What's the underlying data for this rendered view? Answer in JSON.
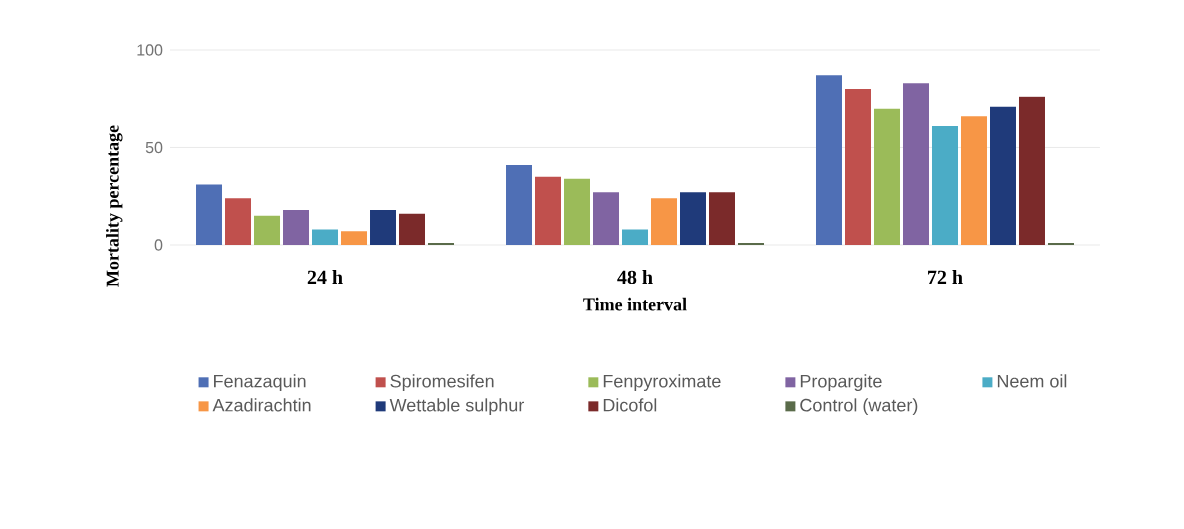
{
  "chart_data": {
    "type": "bar",
    "xlabel": "Time interval",
    "ylabel": "Mortality percentage",
    "categories": [
      "24 h",
      "48 h",
      "72 h"
    ],
    "series": [
      {
        "name": "Fenazaquin",
        "color": "#4f6fb5",
        "values": [
          31,
          41,
          87
        ]
      },
      {
        "name": "Spiromesifen",
        "color": "#c0504d",
        "values": [
          24,
          35,
          80
        ]
      },
      {
        "name": "Fenpyroximate",
        "color": "#9bbb59",
        "values": [
          15,
          34,
          70
        ]
      },
      {
        "name": "Propargite",
        "color": "#8064a2",
        "values": [
          18,
          27,
          83
        ]
      },
      {
        "name": "Neem oil",
        "color": "#4bacc6",
        "values": [
          8,
          8,
          61
        ]
      },
      {
        "name": "Azadirachtin",
        "color": "#f79646",
        "values": [
          7,
          24,
          66
        ]
      },
      {
        "name": "Wettable sulphur",
        "color": "#1f3a7a",
        "values": [
          18,
          27,
          71
        ]
      },
      {
        "name": "Dicofol",
        "color": "#7b2a2a",
        "values": [
          16,
          27,
          76
        ]
      },
      {
        "name": "Control (water)",
        "color": "#5a6b4a",
        "values": [
          1,
          1,
          1
        ]
      }
    ],
    "ylim": [
      0,
      100
    ],
    "yticks": [
      0,
      50,
      100
    ],
    "grid": "y",
    "legend": "bottom"
  }
}
